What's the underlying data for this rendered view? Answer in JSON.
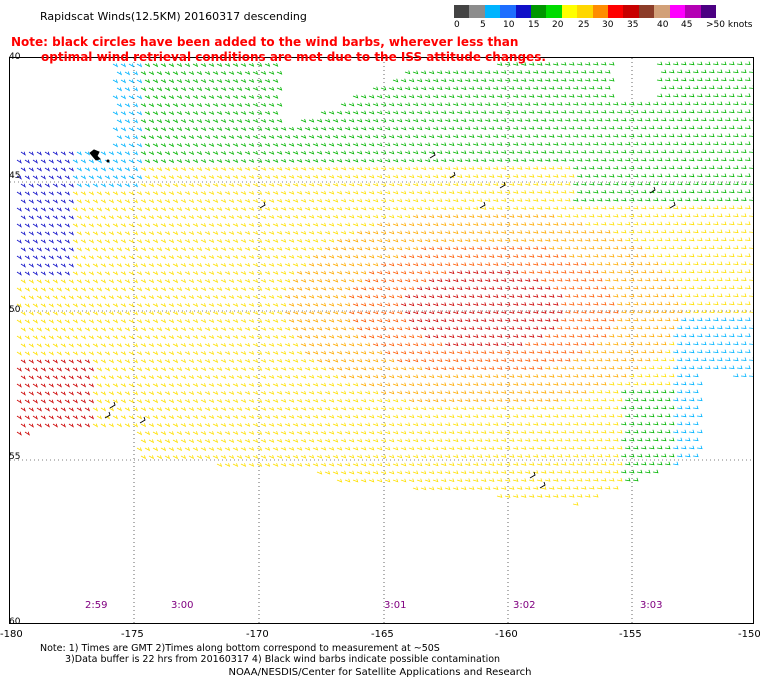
{
  "title": "Rapidscat Winds(12.5KM) 20160317 descending",
  "note": {
    "line1": "Note: black circles have been added to the wind barbs, wherever less than",
    "line2": "optimal wind retrieval conditions are met due to the ISS attitude changes."
  },
  "legend": {
    "unit": ">50 knots",
    "labels": [
      "0",
      "5",
      "10",
      "15",
      "20",
      "25",
      "30",
      "35",
      "40",
      "45"
    ],
    "colors": [
      "#444444",
      "#8c8c8c",
      "#00b4ff",
      "#1e6eff",
      "#1010c8",
      "#009600",
      "#00dc00",
      "#ffff00",
      "#ffd700",
      "#ff8c00",
      "#ff0000",
      "#c80000",
      "#8c3c28",
      "#d2a078",
      "#ff00ff",
      "#b400b4",
      "#4b0082"
    ]
  },
  "map": {
    "lat_labels": [
      "40",
      "45",
      "50",
      "55",
      "60"
    ],
    "lon_labels": [
      "-180",
      "-175",
      "-170",
      "-165",
      "-160",
      "-155",
      "-150"
    ],
    "times": [
      "2:59",
      "3:00",
      "3:01",
      "3:02",
      "3:03"
    ],
    "colors": {
      "land": "#000000",
      "calm": "#1010c8",
      "light": "#00b4ff",
      "moderate": "#00b400",
      "fresh": "#ffe000",
      "strong": "#ffaa00",
      "gale": "#ff5a00",
      "storm": "#cc0000",
      "flagged": "#000000"
    }
  },
  "footnotes": {
    "line1": "Note: 1) Times are GMT 2)Times along bottom correspond to measurement at ~50S",
    "line2": "3)Data buffer is 22 hrs from 20160317 4) Black wind barbs indicate possible contamination"
  },
  "credit": "NOAA/NESDIS/Center for Satellite Applications and Research"
}
